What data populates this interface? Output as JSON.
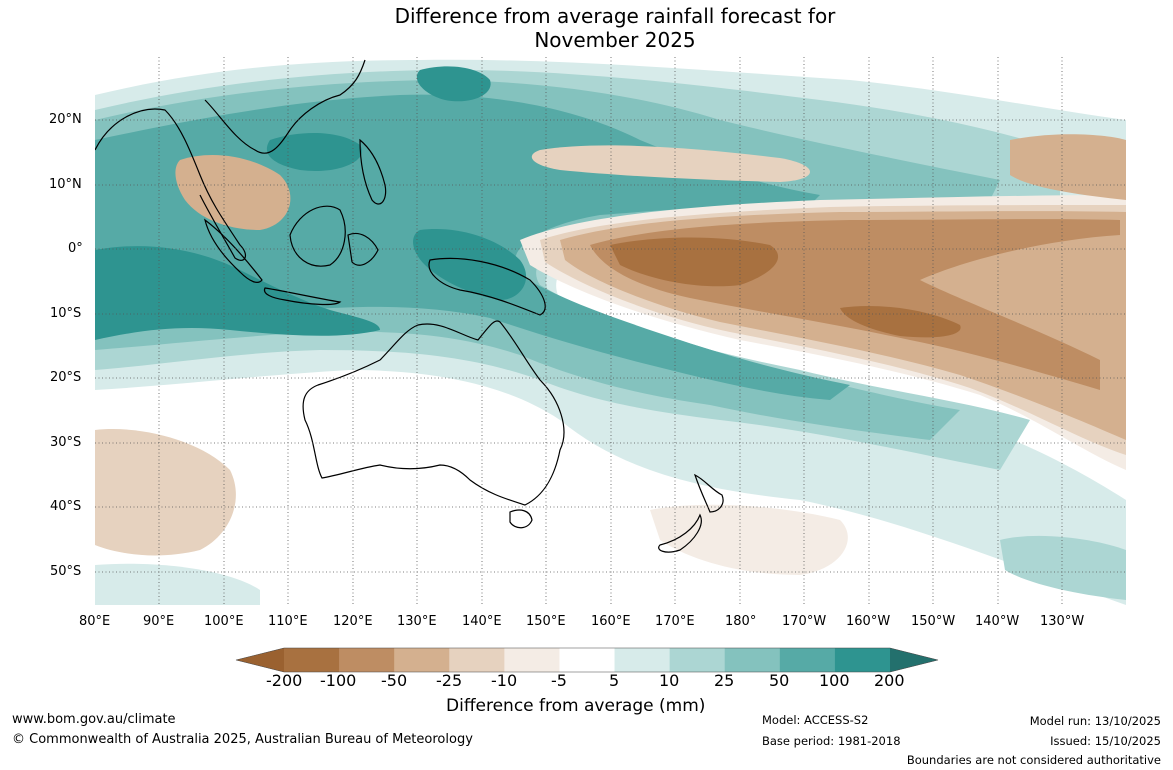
{
  "title": {
    "line1": "Difference from average rainfall forecast for",
    "line2": "November 2025"
  },
  "map": {
    "lat_labels": [
      "20°N",
      "10°N",
      "0°",
      "10°S",
      "20°S",
      "30°S",
      "40°S",
      "50°S"
    ],
    "lon_labels": [
      "80°E",
      "90°E",
      "100°E",
      "110°E",
      "120°E",
      "130°E",
      "140°E",
      "150°E",
      "160°E",
      "170°E",
      "180°",
      "170°W",
      "160°W",
      "150°W",
      "140°W",
      "130°W"
    ]
  },
  "colorbar": {
    "label": "Difference from average (mm)",
    "ticks": [
      "-200",
      "-100",
      "-50",
      "-25",
      "-10",
      "-5",
      "5",
      "10",
      "25",
      "50",
      "100",
      "200"
    ],
    "colors": [
      "#9a6130",
      "#a87140",
      "#be8d63",
      "#d4b08f",
      "#e6d2bf",
      "#f4ece5",
      "#ffffff",
      "#d7ebea",
      "#acd6d3",
      "#84c2be",
      "#56aaa6",
      "#2e9490",
      "#23706d"
    ]
  },
  "footer": {
    "website": "www.bom.gov.au/climate",
    "copyright": "© Commonwealth of Australia 2025, Australian Bureau of Meteorology",
    "model": "Model: ACCESS-S2",
    "base_period": "Base period: 1981-2018",
    "model_run": "Model run: 13/10/2025",
    "issued": "Issued: 15/10/2025",
    "disclaimer": "Boundaries are not considered authoritative"
  }
}
